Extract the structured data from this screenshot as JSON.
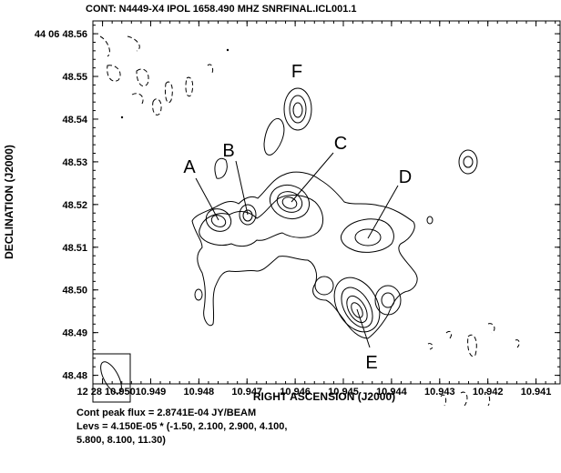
{
  "chart_data": {
    "type": "contour",
    "title": "CONT: N4449-X4  IPOL  1658.490 MHZ  SNRFINAL.ICL001.1",
    "xlabel": "RIGHT ASCENSION (J2000)",
    "ylabel": "DECLINATION (J2000)",
    "x_ticks": [
      "12 28 10.950",
      "10.949",
      "10.948",
      "10.947",
      "10.946",
      "10.945",
      "10.944",
      "10.943",
      "10.942",
      "10.941"
    ],
    "x_tick_values": [
      10.95,
      10.949,
      10.948,
      10.947,
      10.946,
      10.945,
      10.944,
      10.943,
      10.942,
      10.941
    ],
    "y_ticks": [
      "44 06 48.56",
      "48.55",
      "48.54",
      "48.53",
      "48.52",
      "48.51",
      "48.50",
      "48.49",
      "48.48"
    ],
    "y_tick_values": [
      48.56,
      48.55,
      48.54,
      48.53,
      48.52,
      48.51,
      48.5,
      48.49,
      48.48
    ],
    "xlim": [
      10.9502,
      10.9405
    ],
    "ylim": [
      48.478,
      48.563
    ],
    "labeled_components": [
      {
        "label": "A",
        "ra": 10.9474,
        "dec": 48.5185
      },
      {
        "label": "B",
        "ra": 10.9468,
        "dec": 48.5175
      },
      {
        "label": "C",
        "ra": 10.946,
        "dec": 48.5225
      },
      {
        "label": "D",
        "ra": 10.9442,
        "dec": 48.5158
      },
      {
        "label": "E",
        "ra": 10.9447,
        "dec": 48.5015
      },
      {
        "label": "F",
        "ra": 10.946,
        "dec": 48.543
      }
    ],
    "footer": [
      "Cont peak flux =  2.8741E-04 JY/BEAM",
      "Levs = 4.150E-05 * (-1.50, 2.100, 2.900, 4.100,",
      "5.800, 8.100, 11.30)"
    ],
    "peak_flux": 0.00028741,
    "base_level": 4.15e-05,
    "levels": [
      -1.5,
      2.1,
      2.9,
      4.1,
      5.8,
      8.1,
      11.3
    ]
  }
}
